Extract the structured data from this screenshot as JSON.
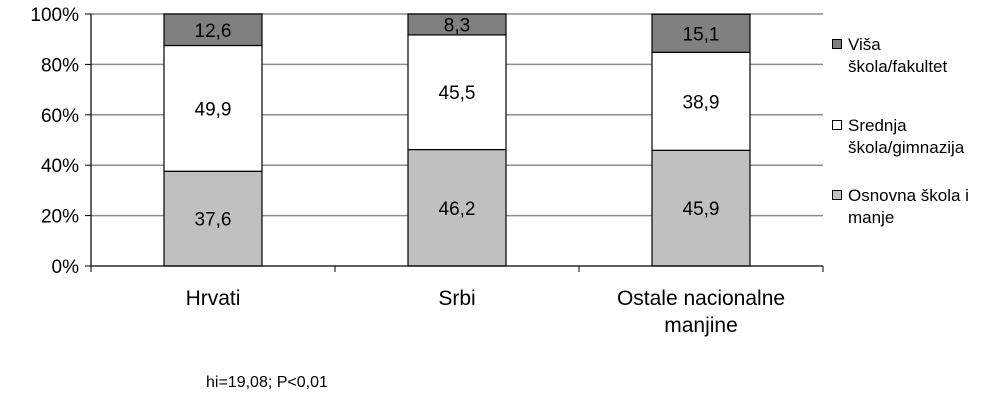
{
  "chart_data": {
    "type": "bar",
    "stacked": true,
    "normalized": true,
    "categories": [
      "Hrvati",
      "Srbi",
      "Ostale nacionalne manjine"
    ],
    "category_lines": [
      [
        "Hrvati"
      ],
      [
        "Srbi"
      ],
      [
        "Ostale nacionalne",
        "manjine"
      ]
    ],
    "series": [
      {
        "name": "Osnovna škola i manje",
        "values": [
          37.6,
          46.2,
          45.9
        ],
        "labels": [
          "37,6",
          "46,2",
          "45,9"
        ],
        "color": "#c0c0c0"
      },
      {
        "name": "Srednja škola/gimnazija",
        "values": [
          49.9,
          45.5,
          38.9
        ],
        "labels": [
          "49,9",
          "45,5",
          "38,9"
        ],
        "color": "#ffffff"
      },
      {
        "name": "Viša škola/fakultet",
        "values": [
          12.6,
          8.3,
          15.1
        ],
        "labels": [
          "12,6",
          "8,3",
          "15,1"
        ],
        "color": "#808080"
      }
    ],
    "yticks": [
      "0%",
      "20%",
      "40%",
      "60%",
      "80%",
      "100%"
    ],
    "ylim": [
      0,
      100
    ],
    "grid": true,
    "legend_position": "right",
    "legend": [
      {
        "lines": [
          "Viša",
          "škola/fakultet"
        ],
        "color": "#808080"
      },
      {
        "lines": [
          "Srednja",
          "škola/gimnazija"
        ],
        "color": "#ffffff"
      },
      {
        "lines": [
          "Osnovna škola i",
          "manje"
        ],
        "color": "#c0c0c0"
      }
    ]
  },
  "footnote": "hi=19,08; P<0,01"
}
